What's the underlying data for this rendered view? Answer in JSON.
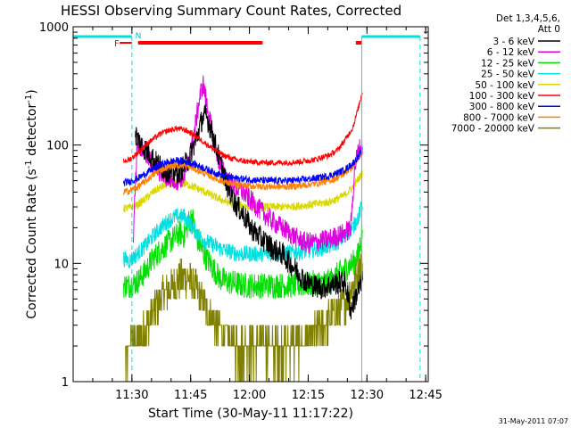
{
  "chart_data": {
    "type": "line",
    "title": "HESSI Observing Summary Count Rates, Corrected",
    "xlabel": "Start Time (30-May-11 11:17:22)",
    "ylabel": "Corrected Count Rate (s",
    "ylabel_sup": "-1",
    "ylabel_mid": " detector",
    "ylabel_end": ")",
    "y_scale": "log",
    "ylim": [
      1,
      1000
    ],
    "xlim_minutes": [
      -15.37,
      75.28
    ],
    "x_ticks": [
      {
        "label": "11:30",
        "t": -0.37
      },
      {
        "label": "11:45",
        "t": 14.63
      },
      {
        "label": "12:00",
        "t": 29.63
      },
      {
        "label": "12:15",
        "t": 44.63
      },
      {
        "label": "12:30",
        "t": 59.63
      },
      {
        "label": "12:45",
        "t": 74.63
      }
    ],
    "y_ticks": [
      {
        "label": "1",
        "v": 1
      },
      {
        "label": "10",
        "v": 10
      },
      {
        "label": "100",
        "v": 100
      },
      {
        "label": "1000",
        "v": 1000
      }
    ],
    "legend_header": [
      "Det 1,3,4,5,6,",
      "Att 0"
    ],
    "legend_position": "right",
    "series": [
      {
        "name": "3 - 6 keV",
        "color": "#000000",
        "points": [
          [
            0.5,
            125
          ],
          [
            2,
            100
          ],
          [
            4,
            85
          ],
          [
            6,
            70
          ],
          [
            8,
            62
          ],
          [
            10,
            58
          ],
          [
            12,
            60
          ],
          [
            14,
            75
          ],
          [
            16,
            110
          ],
          [
            17.5,
            165
          ],
          [
            18.5,
            180
          ],
          [
            20,
            130
          ],
          [
            22,
            75
          ],
          [
            24,
            45
          ],
          [
            26,
            32
          ],
          [
            28,
            26
          ],
          [
            30,
            20
          ],
          [
            32,
            17
          ],
          [
            34,
            15
          ],
          [
            36,
            13
          ],
          [
            38,
            12
          ],
          [
            40,
            10
          ],
          [
            42,
            8.5
          ],
          [
            44,
            7
          ],
          [
            46,
            6.5
          ],
          [
            48,
            6.2
          ],
          [
            50,
            6.5
          ],
          [
            52,
            6.8
          ],
          [
            54,
            7
          ],
          [
            55.5,
            4
          ],
          [
            57,
            5.5
          ],
          [
            58.5,
            7
          ]
        ]
      },
      {
        "name": "6 - 12 keV",
        "color": "#e000e0",
        "points": [
          [
            0,
            18
          ],
          [
            1,
            110
          ],
          [
            3,
            85
          ],
          [
            5,
            68
          ],
          [
            7,
            58
          ],
          [
            9,
            52
          ],
          [
            11,
            50
          ],
          [
            13,
            55
          ],
          [
            14.5,
            80
          ],
          [
            16,
            160
          ],
          [
            17,
            260
          ],
          [
            17.8,
            330
          ],
          [
            19,
            200
          ],
          [
            20.5,
            110
          ],
          [
            22,
            70
          ],
          [
            24,
            52
          ],
          [
            26,
            44
          ],
          [
            28,
            40
          ],
          [
            30,
            34
          ],
          [
            32,
            29
          ],
          [
            34,
            25
          ],
          [
            36,
            22
          ],
          [
            38,
            20
          ],
          [
            40,
            18
          ],
          [
            42,
            16
          ],
          [
            44,
            15
          ],
          [
            46,
            15
          ],
          [
            48,
            15.5
          ],
          [
            50,
            16
          ],
          [
            52,
            17
          ],
          [
            54,
            18
          ],
          [
            55.5,
            20
          ],
          [
            56.5,
            65
          ],
          [
            57.5,
            92
          ],
          [
            58.5,
            95
          ]
        ]
      },
      {
        "name": "12 - 25 keV",
        "color": "#00e000",
        "points": [
          [
            -2.5,
            6.5
          ],
          [
            -1,
            6.5
          ],
          [
            1,
            7
          ],
          [
            3,
            8.5
          ],
          [
            5,
            11
          ],
          [
            7,
            13
          ],
          [
            9,
            15
          ],
          [
            11,
            17
          ],
          [
            12,
            18
          ],
          [
            13,
            17
          ],
          [
            14,
            22
          ],
          [
            15,
            25
          ],
          [
            16,
            17
          ],
          [
            18,
            12
          ],
          [
            20,
            9.5
          ],
          [
            22,
            7.5
          ],
          [
            24,
            7
          ],
          [
            26,
            6.8
          ],
          [
            28,
            6.5
          ],
          [
            30,
            6.5
          ],
          [
            34,
            6.5
          ],
          [
            38,
            6.5
          ],
          [
            42,
            6.5
          ],
          [
            46,
            6.8
          ],
          [
            50,
            7
          ],
          [
            52,
            8
          ],
          [
            54,
            9
          ],
          [
            56,
            10
          ],
          [
            57.5,
            12
          ],
          [
            58.5,
            20
          ]
        ]
      },
      {
        "name": "25 - 50 keV",
        "color": "#00e0e0",
        "points": [
          [
            -2.5,
            11
          ],
          [
            -1,
            10.5
          ],
          [
            1,
            12
          ],
          [
            3,
            14
          ],
          [
            5,
            17
          ],
          [
            7,
            20
          ],
          [
            9,
            23
          ],
          [
            11,
            25
          ],
          [
            13,
            25
          ],
          [
            15,
            20
          ],
          [
            17,
            17
          ],
          [
            19,
            15
          ],
          [
            21,
            14
          ],
          [
            23,
            13
          ],
          [
            25,
            12.5
          ],
          [
            27,
            12
          ],
          [
            30,
            12
          ],
          [
            34,
            12
          ],
          [
            38,
            12.2
          ],
          [
            42,
            12.5
          ],
          [
            46,
            13
          ],
          [
            50,
            14
          ],
          [
            52,
            15
          ],
          [
            54,
            17
          ],
          [
            56,
            20
          ],
          [
            57.5,
            25
          ],
          [
            58.5,
            32
          ]
        ]
      },
      {
        "name": "50 - 100 keV",
        "color": "#d8d800",
        "points": [
          [
            -2.5,
            29
          ],
          [
            -1,
            29.5
          ],
          [
            1,
            31
          ],
          [
            3,
            35
          ],
          [
            5,
            40
          ],
          [
            7,
            44
          ],
          [
            9,
            47
          ],
          [
            11,
            48
          ],
          [
            13,
            47
          ],
          [
            15,
            45
          ],
          [
            17,
            42
          ],
          [
            19,
            39
          ],
          [
            21,
            36
          ],
          [
            23,
            34
          ],
          [
            25,
            32
          ],
          [
            27,
            31
          ],
          [
            30,
            30
          ],
          [
            34,
            30
          ],
          [
            38,
            30
          ],
          [
            42,
            30.5
          ],
          [
            46,
            31.5
          ],
          [
            50,
            33
          ],
          [
            52,
            35
          ],
          [
            54,
            38
          ],
          [
            56,
            44
          ],
          [
            57.5,
            52
          ],
          [
            58.5,
            58
          ]
        ]
      },
      {
        "name": "100 - 300 keV",
        "color": "#ff0000",
        "points": [
          [
            -2.5,
            73
          ],
          [
            -1,
            75
          ],
          [
            1,
            85
          ],
          [
            3,
            100
          ],
          [
            5,
            112
          ],
          [
            7,
            125
          ],
          [
            9,
            133
          ],
          [
            11,
            138
          ],
          [
            13,
            135
          ],
          [
            15,
            125
          ],
          [
            17,
            112
          ],
          [
            19,
            100
          ],
          [
            21,
            90
          ],
          [
            23,
            82
          ],
          [
            25,
            77
          ],
          [
            27,
            74
          ],
          [
            30,
            72
          ],
          [
            34,
            71
          ],
          [
            38,
            71
          ],
          [
            42,
            72
          ],
          [
            46,
            75
          ],
          [
            50,
            82
          ],
          [
            52,
            90
          ],
          [
            54,
            110
          ],
          [
            56,
            140
          ],
          [
            57.5,
            210
          ],
          [
            58.5,
            290
          ]
        ]
      },
      {
        "name": "300 - 800 keV",
        "color": "#0000ff",
        "points": [
          [
            -2.5,
            48
          ],
          [
            -1,
            49
          ],
          [
            1,
            52
          ],
          [
            3,
            57
          ],
          [
            5,
            63
          ],
          [
            7,
            68
          ],
          [
            9,
            72
          ],
          [
            11,
            74
          ],
          [
            13,
            73
          ],
          [
            15,
            70
          ],
          [
            17,
            66
          ],
          [
            19,
            62
          ],
          [
            21,
            58
          ],
          [
            23,
            55
          ],
          [
            25,
            53
          ],
          [
            27,
            52
          ],
          [
            30,
            51
          ],
          [
            34,
            50
          ],
          [
            38,
            50
          ],
          [
            42,
            50.5
          ],
          [
            46,
            52
          ],
          [
            50,
            55
          ],
          [
            52,
            58
          ],
          [
            54,
            62
          ],
          [
            56,
            70
          ],
          [
            57.5,
            80
          ],
          [
            58.5,
            92
          ]
        ]
      },
      {
        "name": "800 - 7000 keV",
        "color": "#ff8000",
        "points": [
          [
            -2.5,
            40
          ],
          [
            -1,
            41
          ],
          [
            1,
            44
          ],
          [
            3,
            49
          ],
          [
            5,
            56
          ],
          [
            7,
            62
          ],
          [
            9,
            66
          ],
          [
            11,
            68
          ],
          [
            13,
            67
          ],
          [
            15,
            64
          ],
          [
            17,
            60
          ],
          [
            19,
            56
          ],
          [
            21,
            52
          ],
          [
            23,
            49
          ],
          [
            25,
            47
          ],
          [
            27,
            45.5
          ],
          [
            30,
            45
          ],
          [
            34,
            44.5
          ],
          [
            38,
            44.5
          ],
          [
            42,
            45
          ],
          [
            46,
            47
          ],
          [
            50,
            50
          ],
          [
            52,
            53
          ],
          [
            54,
            58
          ],
          [
            56,
            66
          ],
          [
            57.5,
            76
          ],
          [
            58.5,
            86
          ]
        ]
      },
      {
        "name": "7000 - 20000 keV",
        "color": "#808000",
        "points": [
          [
            -2,
            1.5
          ],
          [
            -1,
            2
          ],
          [
            0,
            2.2
          ],
          [
            2,
            2.5
          ],
          [
            4,
            3.2
          ],
          [
            6,
            4.5
          ],
          [
            8,
            5.5
          ],
          [
            10,
            6.5
          ],
          [
            12,
            7.5
          ],
          [
            14,
            7.5
          ],
          [
            16,
            6
          ],
          [
            18,
            4.5
          ],
          [
            20,
            3.5
          ],
          [
            22,
            2.8
          ],
          [
            24,
            2.3
          ],
          [
            26,
            2
          ],
          [
            30,
            2
          ],
          [
            34,
            2
          ],
          [
            38,
            2
          ],
          [
            42,
            2
          ],
          [
            44,
            2.2
          ],
          [
            46,
            2.5
          ],
          [
            48,
            2.9
          ],
          [
            50,
            3.4
          ],
          [
            52,
            3.9
          ],
          [
            54,
            4.6
          ],
          [
            56,
            6.5
          ],
          [
            57.5,
            9
          ],
          [
            58.5,
            10
          ]
        ]
      }
    ],
    "annotations": [
      "F",
      "N"
    ],
    "footer_date": "31-May-2011 07:07"
  }
}
